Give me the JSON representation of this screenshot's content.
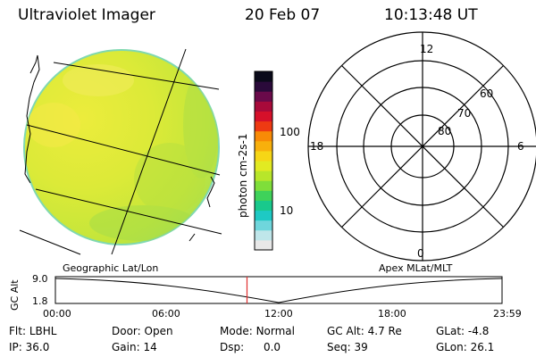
{
  "header": {
    "instrument": "Ultraviolet Imager",
    "date": "20 Feb 07",
    "time": "10:13:48 UT"
  },
  "colorbar": {
    "unit_label": "photon cm-2s-1",
    "ticks": [
      "100",
      "10"
    ],
    "colors": [
      "#e8e8e8",
      "#bfe6ea",
      "#6fd6dc",
      "#1ec9c4",
      "#19c98c",
      "#3fd25a",
      "#7fde3a",
      "#b8e62a",
      "#e2ea22",
      "#f6d616",
      "#f8b00c",
      "#f88a06",
      "#ee3a12",
      "#d6102a",
      "#a80a3a",
      "#6a0a4a",
      "#2a0a3a",
      "#0a0a1a"
    ]
  },
  "polar_grid": {
    "labels": {
      "top": "12",
      "left": "18",
      "right": "6",
      "bottom": "0"
    },
    "lat_labels": [
      "60",
      "70",
      "80"
    ]
  },
  "timeline": {
    "left_label": "Geographic Lat/Lon",
    "right_label": "Apex MLat/MLT",
    "y_axis_label": "GC Alt",
    "y_ticks": [
      "9.0",
      "1.8"
    ],
    "x_ticks": [
      "00:00",
      "06:00",
      "12:00",
      "18:00",
      "23:59"
    ],
    "current_marker_time": "10:13:48"
  },
  "status": {
    "flt_label": "Flt:",
    "flt_value": "LBHL",
    "door_label": "Door:",
    "door_value": "Open",
    "mode_label": "Mode:",
    "mode_value": "Normal",
    "gcalt_label": "GC Alt:",
    "gcalt_value": "4.7 Re",
    "glat_label": "GLat:",
    "glat_value": "-4.8",
    "ip_label": "IP:",
    "ip_value": "36.0",
    "gain_label": "Gain:",
    "gain_value": "14",
    "dsp_label": "Dsp:",
    "dsp_value": "0.0",
    "seq_label": "Seq:",
    "seq_value": "39",
    "glon_label": "GLon:",
    "glon_value": "26.1"
  }
}
